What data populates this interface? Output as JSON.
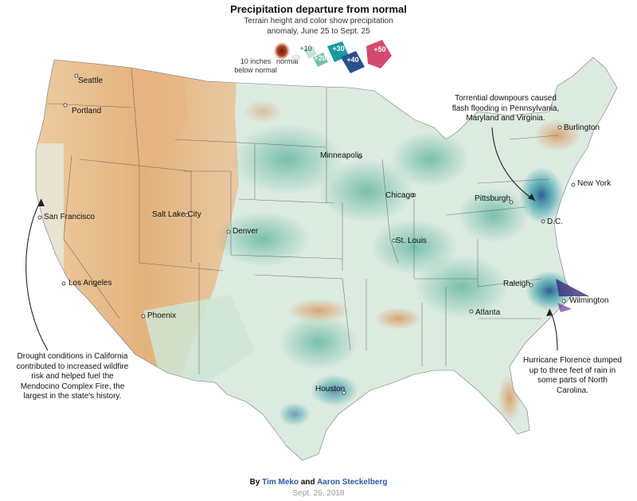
{
  "header": {
    "title": "Precipitation departure from normal",
    "subtitle": "Terrain height and color show precipitation anomaly, June 25 to Sept. 25"
  },
  "legend": {
    "below_label": "10 inches below normal",
    "normal_label": "normal",
    "steps": [
      "+10",
      "+20",
      "+30",
      "+40",
      "+50"
    ],
    "colors": {
      "dry": "#8a2a12",
      "normal": "#e8ece4",
      "s10": "#c6e4d2",
      "s20": "#74c3a6",
      "s30": "#1a9aa0",
      "s40": "#2a4f8a",
      "s50": "#d24a70"
    }
  },
  "cities": [
    {
      "name": "Seattle"
    },
    {
      "name": "Portland"
    },
    {
      "name": "San Francisco"
    },
    {
      "name": "Los Angeles"
    },
    {
      "name": "Salt Lake City"
    },
    {
      "name": "Phoenix"
    },
    {
      "name": "Denver"
    },
    {
      "name": "Minneapolis"
    },
    {
      "name": "Chicago"
    },
    {
      "name": "St. Louis"
    },
    {
      "name": "Houston"
    },
    {
      "name": "Atlanta"
    },
    {
      "name": "Pittsburgh"
    },
    {
      "name": "D.C."
    },
    {
      "name": "New York"
    },
    {
      "name": "Burlington"
    },
    {
      "name": "Raleigh"
    },
    {
      "name": "Wilmington"
    }
  ],
  "annotations": {
    "northeast": "Torrential downpours caused flash flooding in Pennsylvania, Maryland and Virginia.",
    "california": "Drought conditions in California contributed to increased wildfire risk and helped fuel the Mendocino Complex Fire, the largest in the state's history.",
    "florence": "Hurricane Florence dumped up to three feet of rain in some parts of North Carolina."
  },
  "byline": {
    "prefix": "By",
    "author1": "Tim Meko",
    "and": "and",
    "author2": "Aaron Steckelberg",
    "date": "Sept. 26, 2018"
  }
}
